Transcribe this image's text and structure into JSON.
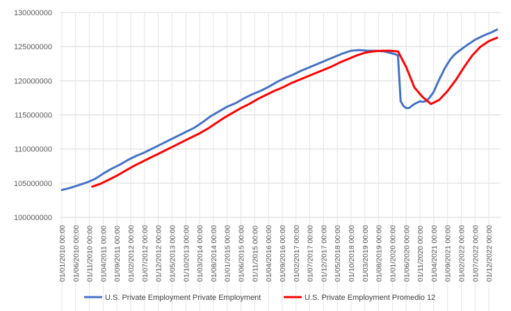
{
  "chart_data": {
    "type": "line",
    "title": "",
    "xlabel": "",
    "ylabel": "",
    "ylim": [
      100000000,
      130000000
    ],
    "y_ticks": [
      "100000000",
      "105000000",
      "110000000",
      "115000000",
      "120000000",
      "125000000",
      "130000000"
    ],
    "x_ticks": [
      "01/01/2010 00:00",
      "01/06/2010 00:00",
      "01/11/2010 00:00",
      "01/04/2011 00:00",
      "01/09/2011 00:00",
      "01/02/2012 00:00",
      "01/07/2012 00:00",
      "01/12/2012 00:00",
      "01/05/2013 00:00",
      "01/10/2013 00:00",
      "01/03/2014 00:00",
      "01/08/2014 00:00",
      "01/01/2015 00:00",
      "01/06/2015 00:00",
      "01/11/2015 00:00",
      "01/04/2016 00:00",
      "01/09/2016 00:00",
      "01/02/2017 00:00",
      "01/07/2017 00:00",
      "01/12/2017 00:00",
      "01/05/2018 00:00",
      "01/10/2018 00:00",
      "01/03/2019 00:00",
      "01/08/2019 00:00",
      "01/01/2020 00:00",
      "01/06/2020 00:00",
      "01/11/2020 00:00",
      "01/04/2021 00:00",
      "01/09/2021 00:00",
      "01/02/2022 00:00",
      "01/07/2022 00:00",
      "01/12/2022 00:00"
    ],
    "grid": {
      "x": true,
      "y": true
    },
    "legend_position": "bottom",
    "series": [
      {
        "name": "U.S. Private Employment Private Employment",
        "color": "#4472C4",
        "x": [
          "2010-01",
          "2010-04",
          "2010-07",
          "2010-10",
          "2011-01",
          "2011-04",
          "2011-07",
          "2011-10",
          "2012-01",
          "2012-04",
          "2012-07",
          "2012-10",
          "2013-01",
          "2013-04",
          "2013-07",
          "2013-10",
          "2014-01",
          "2014-04",
          "2014-07",
          "2014-10",
          "2015-01",
          "2015-04",
          "2015-07",
          "2015-10",
          "2016-01",
          "2016-04",
          "2016-07",
          "2016-10",
          "2017-01",
          "2017-04",
          "2017-07",
          "2017-10",
          "2018-01",
          "2018-04",
          "2018-07",
          "2018-10",
          "2019-01",
          "2019-04",
          "2019-07",
          "2019-10",
          "2020-01",
          "2020-02",
          "2020-03",
          "2020-04",
          "2020-05",
          "2020-06",
          "2020-07",
          "2020-08",
          "2020-09",
          "2020-10",
          "2020-11",
          "2020-12",
          "2021-01",
          "2021-02",
          "2021-03",
          "2021-04",
          "2021-05",
          "2021-06",
          "2021-07",
          "2021-08",
          "2021-09",
          "2021-10",
          "2021-11",
          "2021-12",
          "2022-01",
          "2022-04",
          "2022-07",
          "2022-10",
          "2023-01",
          "2023-03"
        ],
        "values": [
          104000000,
          104300000,
          104700000,
          105100000,
          105600000,
          106400000,
          107100000,
          107700000,
          108400000,
          109000000,
          109500000,
          110100000,
          110700000,
          111300000,
          111900000,
          112500000,
          113100000,
          113900000,
          114800000,
          115500000,
          116200000,
          116700000,
          117400000,
          118000000,
          118500000,
          119100000,
          119800000,
          120400000,
          120900000,
          121500000,
          122000000,
          122500000,
          123000000,
          123500000,
          124000000,
          124400000,
          124500000,
          124400000,
          124400000,
          124300000,
          124000000,
          123900000,
          123700000,
          117000000,
          116300000,
          116000000,
          116000000,
          116300000,
          116600000,
          116800000,
          117000000,
          116900000,
          117000000,
          117300000,
          117800000,
          118400000,
          119300000,
          120200000,
          121000000,
          121800000,
          122500000,
          123100000,
          123600000,
          124000000,
          124300000,
          125200000,
          126000000,
          126600000,
          127100000,
          127500000
        ]
      },
      {
        "name": "U.S. Private Employment Promedio 12",
        "color": "#FF0000",
        "x": [
          "2010-12",
          "2011-03",
          "2011-06",
          "2011-09",
          "2011-12",
          "2012-03",
          "2012-06",
          "2012-09",
          "2012-12",
          "2013-03",
          "2013-06",
          "2013-09",
          "2013-12",
          "2014-03",
          "2014-06",
          "2014-09",
          "2014-12",
          "2015-03",
          "2015-06",
          "2015-09",
          "2015-12",
          "2016-03",
          "2016-06",
          "2016-09",
          "2016-12",
          "2017-03",
          "2017-06",
          "2017-09",
          "2017-12",
          "2018-03",
          "2018-06",
          "2018-09",
          "2018-12",
          "2019-03",
          "2019-06",
          "2019-09",
          "2019-12",
          "2020-03",
          "2020-06",
          "2020-09",
          "2020-12",
          "2021-03",
          "2021-06",
          "2021-09",
          "2021-12",
          "2022-03",
          "2022-06",
          "2022-09",
          "2022-12",
          "2023-03"
        ],
        "values": [
          104500000,
          104900000,
          105500000,
          106100000,
          106800000,
          107500000,
          108100000,
          108700000,
          109300000,
          109900000,
          110500000,
          111100000,
          111700000,
          112300000,
          113000000,
          113800000,
          114600000,
          115300000,
          116000000,
          116600000,
          117300000,
          117900000,
          118500000,
          119000000,
          119600000,
          120100000,
          120600000,
          121100000,
          121600000,
          122100000,
          122700000,
          123200000,
          123700000,
          124100000,
          124300000,
          124400000,
          124400000,
          124300000,
          122000000,
          119000000,
          117600000,
          116600000,
          117200000,
          118500000,
          120100000,
          122000000,
          123700000,
          125000000,
          125800000,
          126300000
        ]
      }
    ]
  }
}
